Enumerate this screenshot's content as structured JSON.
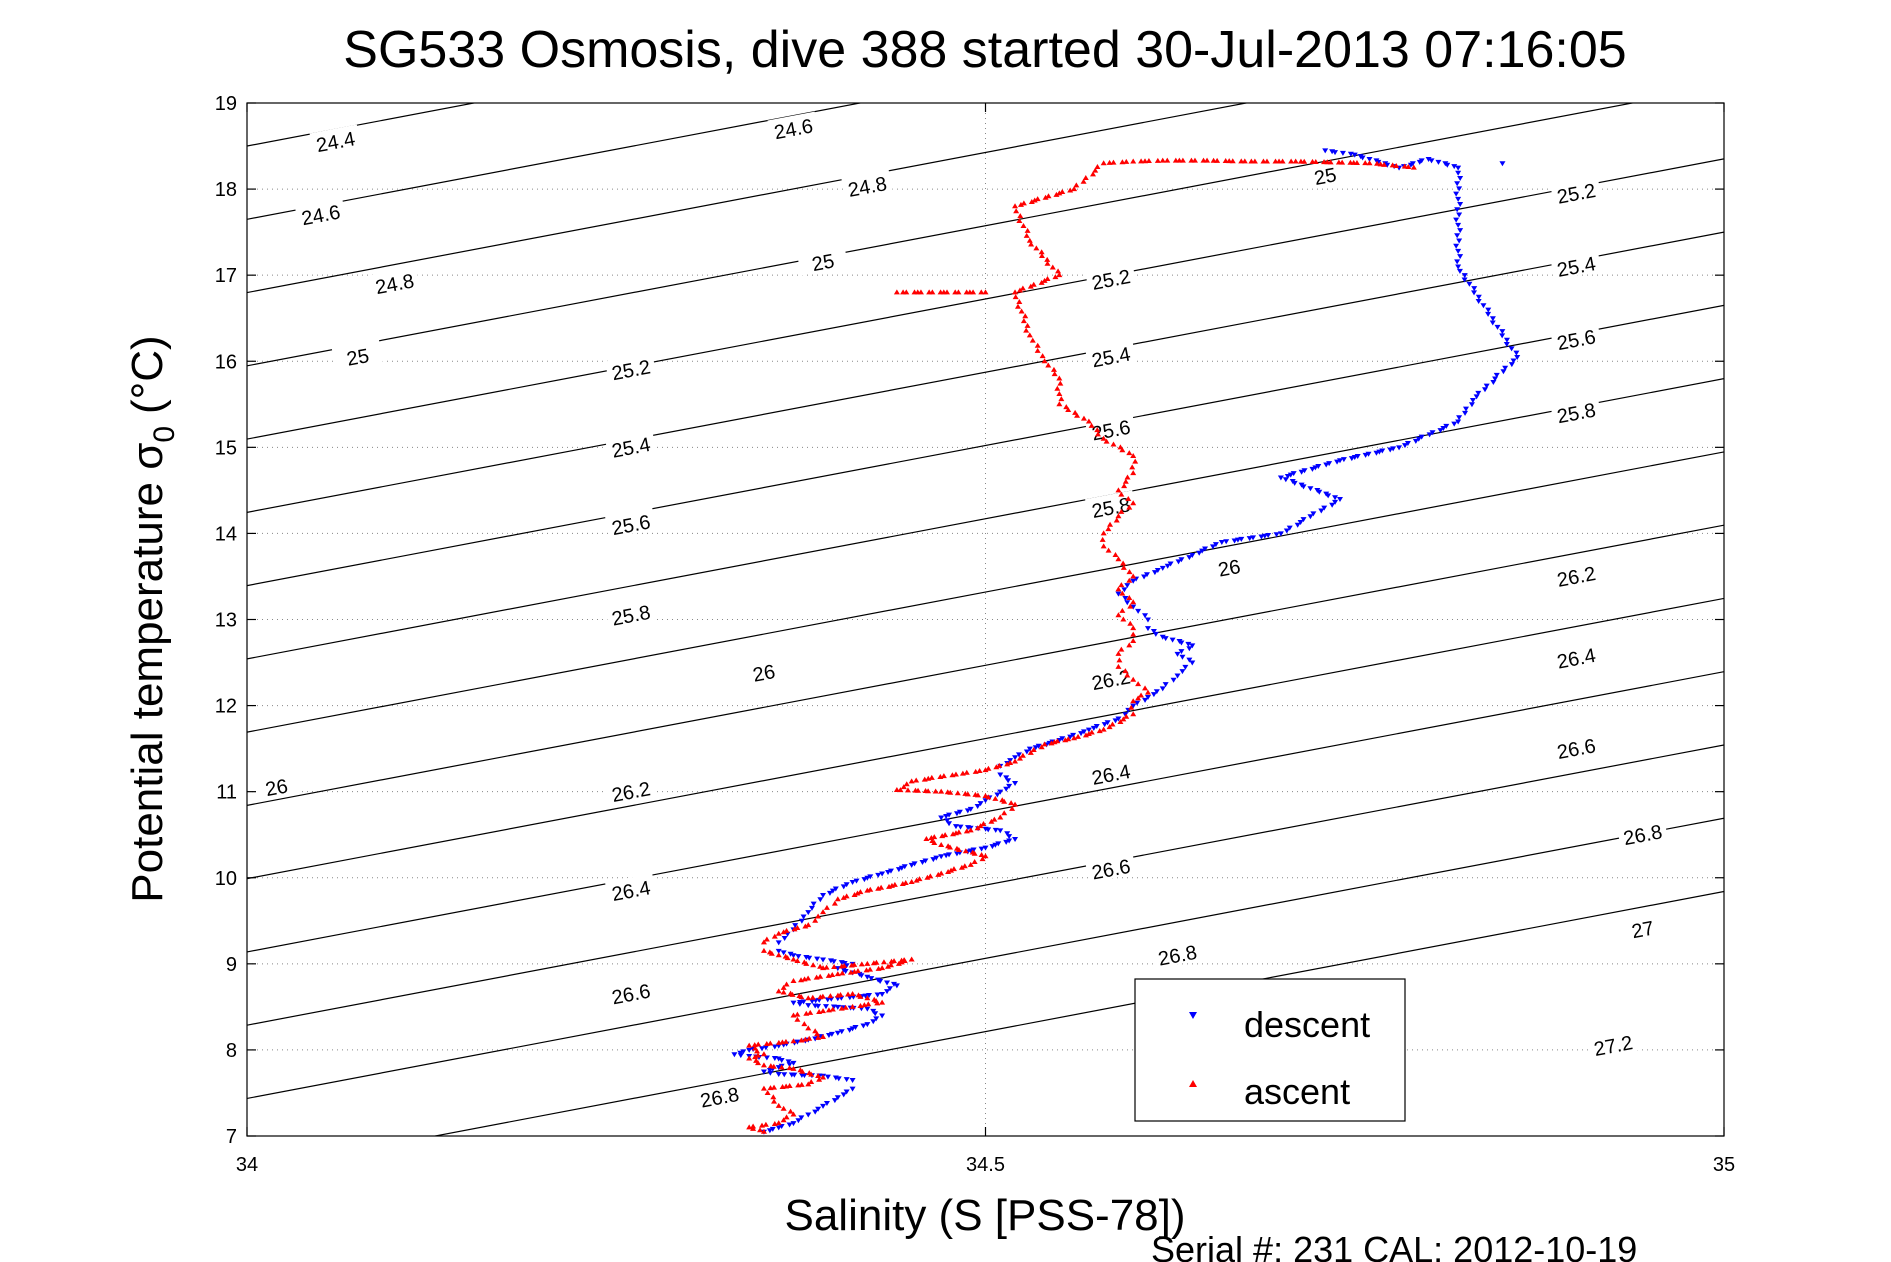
{
  "chart_data": {
    "type": "scatter",
    "title": "SG533 Osmosis, dive 388 started 30-Jul-2013 07:16:05",
    "xlabel": "Salinity (S [PSS-78])",
    "ylabel_main": "Potential temperature σ",
    "ylabel_sub": "0",
    "ylabel_unit": "(°C)",
    "xlim": [
      34,
      35
    ],
    "ylim": [
      7,
      19
    ],
    "xticks": [
      "34",
      "34.5",
      "35"
    ],
    "yticks": [
      "7",
      "8",
      "9",
      "10",
      "11",
      "12",
      "13",
      "14",
      "15",
      "16",
      "17",
      "18",
      "19"
    ],
    "grid": "dotted at x=34.5 and every y tick",
    "legend_position": "bottom-right",
    "density_contours": {
      "levels": [
        24.4,
        24.6,
        24.8,
        25,
        25.2,
        25.4,
        25.6,
        25.8,
        26,
        26.2,
        26.4,
        26.6,
        26.8,
        27,
        27.2
      ],
      "labels": [
        {
          "text": "24.4",
          "s": 34.06,
          "t": 18.55
        },
        {
          "text": "24.6",
          "s": 34.37,
          "t": 18.7
        },
        {
          "text": "24.6",
          "s": 34.05,
          "t": 17.7
        },
        {
          "text": "24.8",
          "s": 34.42,
          "t": 18.03
        },
        {
          "text": "24.8",
          "s": 34.1,
          "t": 16.9
        },
        {
          "text": "25",
          "s": 34.39,
          "t": 17.15
        },
        {
          "text": "25",
          "s": 34.075,
          "t": 16.05
        },
        {
          "text": "25",
          "s": 34.73,
          "t": 18.15
        },
        {
          "text": "25.2",
          "s": 34.26,
          "t": 15.9
        },
        {
          "text": "25.2",
          "s": 34.585,
          "t": 16.95
        },
        {
          "text": "25.2",
          "s": 34.9,
          "t": 17.95
        },
        {
          "text": "25.4",
          "s": 34.26,
          "t": 15.0
        },
        {
          "text": "25.4",
          "s": 34.585,
          "t": 16.05
        },
        {
          "text": "25.4",
          "s": 34.9,
          "t": 17.1
        },
        {
          "text": "25.6",
          "s": 34.26,
          "t": 14.1
        },
        {
          "text": "25.6",
          "s": 34.585,
          "t": 15.2
        },
        {
          "text": "25.6",
          "s": 34.9,
          "t": 16.25
        },
        {
          "text": "25.8",
          "s": 34.26,
          "t": 13.05
        },
        {
          "text": "25.8",
          "s": 34.585,
          "t": 14.3
        },
        {
          "text": "25.8",
          "s": 34.9,
          "t": 15.4
        },
        {
          "text": "26",
          "s": 34.02,
          "t": 11.05
        },
        {
          "text": "26",
          "s": 34.35,
          "t": 12.38
        },
        {
          "text": "26",
          "s": 34.665,
          "t": 13.6
        },
        {
          "text": "26.2",
          "s": 34.26,
          "t": 11.0
        },
        {
          "text": "26.2",
          "s": 34.585,
          "t": 12.3
        },
        {
          "text": "26.2",
          "s": 34.9,
          "t": 13.5
        },
        {
          "text": "26.4",
          "s": 34.26,
          "t": 9.85
        },
        {
          "text": "26.4",
          "s": 34.585,
          "t": 11.2
        },
        {
          "text": "26.4",
          "s": 34.9,
          "t": 12.55
        },
        {
          "text": "26.6",
          "s": 34.26,
          "t": 8.65
        },
        {
          "text": "26.6",
          "s": 34.585,
          "t": 10.1
        },
        {
          "text": "26.6",
          "s": 34.9,
          "t": 11.5
        },
        {
          "text": "26.8",
          "s": 34.32,
          "t": 7.45
        },
        {
          "text": "26.8",
          "s": 34.63,
          "t": 9.1
        },
        {
          "text": "26.8",
          "s": 34.945,
          "t": 10.5
        },
        {
          "text": "27",
          "s": 34.945,
          "t": 9.4
        },
        {
          "text": "27.2",
          "s": 34.925,
          "t": 8.05
        }
      ]
    },
    "series": [
      {
        "name": "descent",
        "color": "#0000ff",
        "marker": "triangle-down",
        "points": [
          [
            34.35,
            7.05
          ],
          [
            34.36,
            7.1
          ],
          [
            34.37,
            7.15
          ],
          [
            34.38,
            7.25
          ],
          [
            34.39,
            7.35
          ],
          [
            34.4,
            7.45
          ],
          [
            34.41,
            7.55
          ],
          [
            34.41,
            7.65
          ],
          [
            34.39,
            7.7
          ],
          [
            34.36,
            7.72
          ],
          [
            34.35,
            7.75
          ],
          [
            34.36,
            7.8
          ],
          [
            34.37,
            7.85
          ],
          [
            34.36,
            7.9
          ],
          [
            34.34,
            7.93
          ],
          [
            34.33,
            7.95
          ],
          [
            34.34,
            8.0
          ],
          [
            34.36,
            8.05
          ],
          [
            34.38,
            8.12
          ],
          [
            34.4,
            8.2
          ],
          [
            34.42,
            8.3
          ],
          [
            34.43,
            8.4
          ],
          [
            34.42,
            8.48
          ],
          [
            34.4,
            8.5
          ],
          [
            34.38,
            8.52
          ],
          [
            34.37,
            8.55
          ],
          [
            34.4,
            8.6
          ],
          [
            34.43,
            8.65
          ],
          [
            34.44,
            8.75
          ],
          [
            34.42,
            8.85
          ],
          [
            34.4,
            8.95
          ],
          [
            34.41,
            9.0
          ],
          [
            34.39,
            9.05
          ],
          [
            34.37,
            9.1
          ],
          [
            34.36,
            9.15
          ],
          [
            34.36,
            9.25
          ],
          [
            34.37,
            9.4
          ],
          [
            34.38,
            9.6
          ],
          [
            34.39,
            9.8
          ],
          [
            34.41,
            9.95
          ],
          [
            34.43,
            10.05
          ],
          [
            34.45,
            10.15
          ],
          [
            34.47,
            10.25
          ],
          [
            34.5,
            10.35
          ],
          [
            34.52,
            10.45
          ],
          [
            34.51,
            10.55
          ],
          [
            34.48,
            10.6
          ],
          [
            34.47,
            10.7
          ],
          [
            34.49,
            10.8
          ],
          [
            34.5,
            10.9
          ],
          [
            34.51,
            11.0
          ],
          [
            34.52,
            11.1
          ],
          [
            34.51,
            11.2
          ],
          [
            34.51,
            11.3
          ],
          [
            34.52,
            11.4
          ],
          [
            34.53,
            11.5
          ],
          [
            34.55,
            11.6
          ],
          [
            34.57,
            11.72
          ],
          [
            34.59,
            11.85
          ],
          [
            34.6,
            12.0
          ],
          [
            34.61,
            12.1
          ],
          [
            34.62,
            12.2
          ],
          [
            34.63,
            12.35
          ],
          [
            34.64,
            12.5
          ],
          [
            34.63,
            12.6
          ],
          [
            34.64,
            12.7
          ],
          [
            34.62,
            12.8
          ],
          [
            34.61,
            12.9
          ],
          [
            34.61,
            13.0
          ],
          [
            34.6,
            13.15
          ],
          [
            34.59,
            13.3
          ],
          [
            34.6,
            13.45
          ],
          [
            34.62,
            13.6
          ],
          [
            34.64,
            13.75
          ],
          [
            34.66,
            13.9
          ],
          [
            34.7,
            14.0
          ],
          [
            34.72,
            14.2
          ],
          [
            34.74,
            14.4
          ],
          [
            34.7,
            14.65
          ],
          [
            34.74,
            14.85
          ],
          [
            34.78,
            15.0
          ],
          [
            34.82,
            15.3
          ],
          [
            34.83,
            15.55
          ],
          [
            34.86,
            16.05
          ],
          [
            34.82,
            17.1
          ],
          [
            34.82,
            18.25
          ],
          [
            34.8,
            18.35
          ],
          [
            34.78,
            18.25
          ],
          [
            34.75,
            18.4
          ],
          [
            34.73,
            18.45
          ],
          [
            34.85,
            18.3
          ]
        ]
      },
      {
        "name": "ascent",
        "color": "#ff0000",
        "marker": "triangle-up",
        "points": [
          [
            34.35,
            7.05
          ],
          [
            34.34,
            7.1
          ],
          [
            34.36,
            7.15
          ],
          [
            34.37,
            7.25
          ],
          [
            34.36,
            7.35
          ],
          [
            34.35,
            7.55
          ],
          [
            34.38,
            7.6
          ],
          [
            34.39,
            7.68
          ],
          [
            34.37,
            7.78
          ],
          [
            34.35,
            7.82
          ],
          [
            34.34,
            7.9
          ],
          [
            34.35,
            7.95
          ],
          [
            34.34,
            8.05
          ],
          [
            34.37,
            8.1
          ],
          [
            34.39,
            8.15
          ],
          [
            34.38,
            8.25
          ],
          [
            34.37,
            8.4
          ],
          [
            34.39,
            8.45
          ],
          [
            34.41,
            8.5
          ],
          [
            34.43,
            8.55
          ],
          [
            34.41,
            8.65
          ],
          [
            34.38,
            8.6
          ],
          [
            34.36,
            8.68
          ],
          [
            34.37,
            8.8
          ],
          [
            34.4,
            8.88
          ],
          [
            34.43,
            8.95
          ],
          [
            34.45,
            9.05
          ],
          [
            34.42,
            9.0
          ],
          [
            34.39,
            8.95
          ],
          [
            34.37,
            9.05
          ],
          [
            34.35,
            9.15
          ],
          [
            34.35,
            9.25
          ],
          [
            34.36,
            9.35
          ],
          [
            34.38,
            9.45
          ],
          [
            34.39,
            9.6
          ],
          [
            34.4,
            9.75
          ],
          [
            34.42,
            9.85
          ],
          [
            34.45,
            9.95
          ],
          [
            34.47,
            10.05
          ],
          [
            34.49,
            10.15
          ],
          [
            34.5,
            10.25
          ],
          [
            34.47,
            10.38
          ],
          [
            34.46,
            10.45
          ],
          [
            34.49,
            10.55
          ],
          [
            34.51,
            10.7
          ],
          [
            34.52,
            10.85
          ],
          [
            34.5,
            10.95
          ],
          [
            34.47,
            11.0
          ],
          [
            34.44,
            11.02
          ],
          [
            34.45,
            11.12
          ],
          [
            34.48,
            11.2
          ],
          [
            34.5,
            11.25
          ],
          [
            34.52,
            11.35
          ],
          [
            34.54,
            11.55
          ],
          [
            34.56,
            11.62
          ],
          [
            34.58,
            11.72
          ],
          [
            34.6,
            11.9
          ],
          [
            34.6,
            12.05
          ],
          [
            34.61,
            12.15
          ],
          [
            34.6,
            12.3
          ],
          [
            34.59,
            12.45
          ],
          [
            34.59,
            12.6
          ],
          [
            34.6,
            12.75
          ],
          [
            34.6,
            12.9
          ],
          [
            34.59,
            13.05
          ],
          [
            34.6,
            13.2
          ],
          [
            34.59,
            13.35
          ],
          [
            34.6,
            13.5
          ],
          [
            34.59,
            13.7
          ],
          [
            34.58,
            13.85
          ],
          [
            34.58,
            14.0
          ],
          [
            34.59,
            14.2
          ],
          [
            34.6,
            14.35
          ],
          [
            34.59,
            14.5
          ],
          [
            34.6,
            14.7
          ],
          [
            34.6,
            14.9
          ],
          [
            34.58,
            15.1
          ],
          [
            34.57,
            15.3
          ],
          [
            34.55,
            15.5
          ],
          [
            34.55,
            15.8
          ],
          [
            34.54,
            16.0
          ],
          [
            34.53,
            16.3
          ],
          [
            34.52,
            16.8
          ],
          [
            34.55,
            17.0
          ],
          [
            34.53,
            17.4
          ],
          [
            34.52,
            17.8
          ],
          [
            34.56,
            18.0
          ],
          [
            34.58,
            18.3
          ],
          [
            34.6,
            18.32
          ],
          [
            34.62,
            18.33
          ],
          [
            34.65,
            18.33
          ],
          [
            34.68,
            18.32
          ],
          [
            34.71,
            18.32
          ],
          [
            34.76,
            18.3
          ],
          [
            34.79,
            18.25
          ],
          [
            34.44,
            16.8
          ],
          [
            34.5,
            16.8
          ]
        ]
      }
    ]
  },
  "footer": {
    "serial": "Serial #: 231  CAL: 2012-10-19"
  }
}
